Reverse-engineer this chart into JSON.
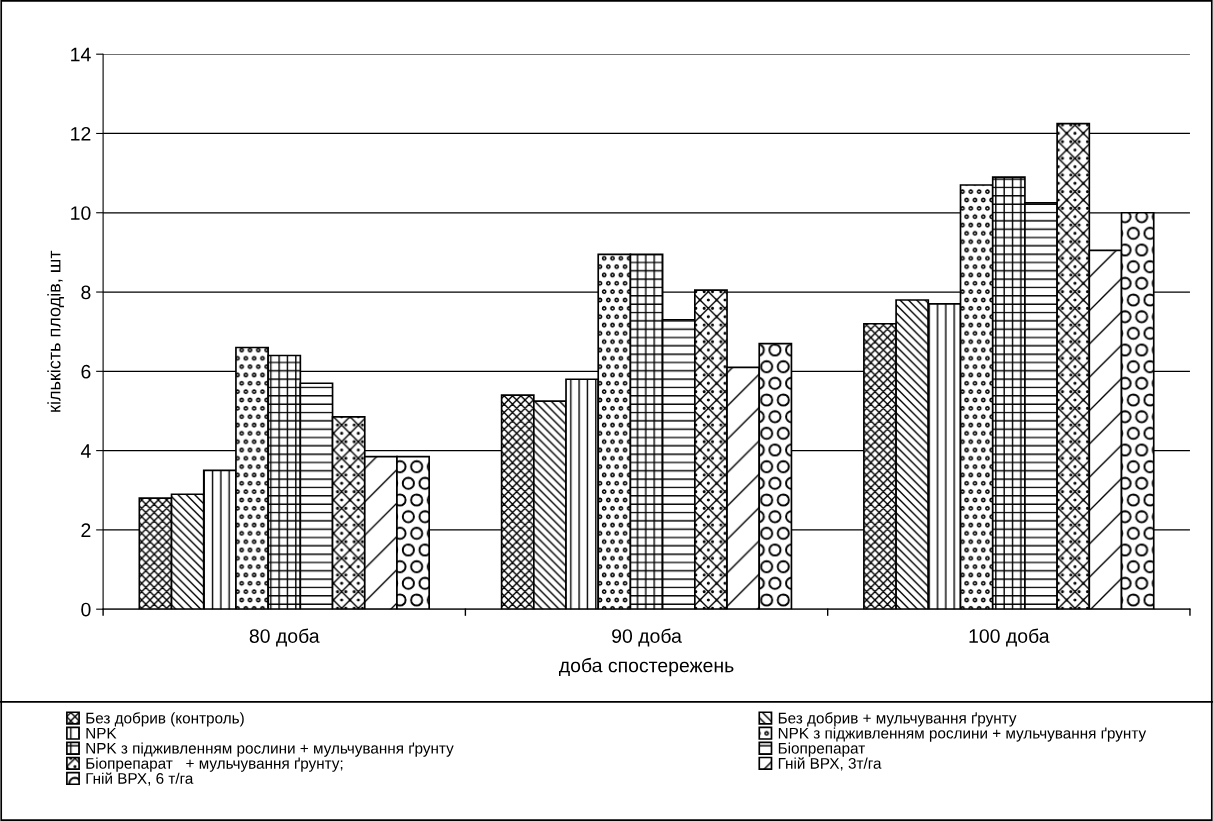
{
  "chart_data": {
    "type": "bar",
    "xlabel": "доба спостережень",
    "ylabel": "кількість плодів, шт",
    "categories": [
      "80 доба",
      "90 доба",
      "100 доба"
    ],
    "series": [
      {
        "name": "Без добрив (контроль)",
        "color": "#000000",
        "values": [
          2.8,
          5.4,
          7.2
        ]
      },
      {
        "name": "Без добрив + мульчування ґрунту",
        "color": "#000000",
        "values": [
          2.9,
          5.25,
          7.8
        ]
      },
      {
        "name": "NPK",
        "color": "#000000",
        "values": [
          3.5,
          5.8,
          7.7
        ]
      },
      {
        "name": "NPK з підживленням рослини + мульчування ґрунту",
        "color": "#000000",
        "values": [
          6.6,
          8.95,
          10.7
        ]
      },
      {
        "name": "NPK з підживленням рослини + мульчування ґрунту",
        "color": "#000000",
        "values": [
          6.4,
          8.95,
          10.9
        ]
      },
      {
        "name": "Біопрепарат",
        "color": "#000000",
        "values": [
          5.7,
          7.3,
          10.25
        ]
      },
      {
        "name": "Біопрепарат   + мульчування ґрунту;",
        "color": "#000000",
        "values": [
          4.85,
          8.05,
          12.25
        ]
      },
      {
        "name": "Гній ВРХ, 3т/га",
        "color": "#000000",
        "values": [
          3.85,
          6.1,
          9.05
        ]
      },
      {
        "name": "Гній ВРХ, 6 т/га",
        "color": "#000000",
        "values": [
          3.85,
          6.7,
          10.0
        ]
      }
    ],
    "ylim": [
      0,
      14
    ],
    "yticks": [
      0,
      2,
      4,
      6,
      8,
      10,
      12,
      14
    ],
    "grid": "y",
    "legend": "bottom"
  }
}
